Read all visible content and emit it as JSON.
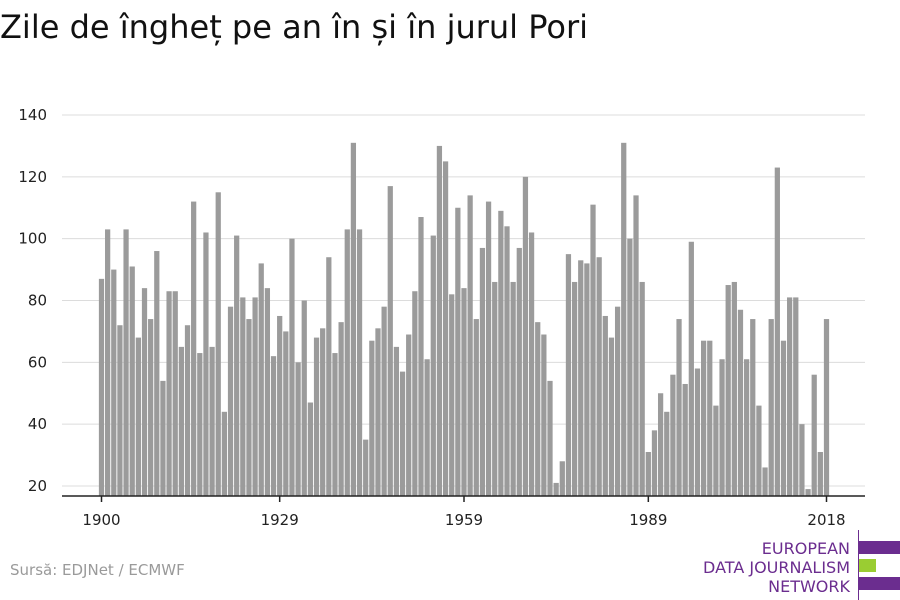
{
  "title": "Zile de îngheț pe an în și în jurul Pori",
  "source": "Sursă: EDJNet / ECMWF",
  "logo": {
    "lines": [
      "EUROPEAN",
      "DATA JOURNALISM",
      "NETWORK"
    ],
    "colors": {
      "text": "#6b2d8f",
      "bar": "#6b2d8f",
      "accent": "#9acd32"
    }
  },
  "chart_data": {
    "type": "bar",
    "title": "Zile de îngheț pe an în și în jurul Pori",
    "xlabel": "",
    "ylabel": "",
    "x_start": 1900,
    "x_end": 2018,
    "xticks": [
      1900,
      1929,
      1959,
      1989,
      2018
    ],
    "yticks": [
      20,
      40,
      60,
      80,
      100,
      120,
      140
    ],
    "ylim": [
      16,
      145
    ],
    "grid": true,
    "bar_color": "#9b9b9b",
    "values": [
      87,
      103,
      90,
      72,
      103,
      91,
      68,
      84,
      74,
      96,
      54,
      83,
      83,
      65,
      72,
      112,
      63,
      102,
      65,
      115,
      44,
      78,
      101,
      81,
      74,
      81,
      92,
      84,
      62,
      75,
      70,
      100,
      60,
      80,
      47,
      68,
      71,
      94,
      63,
      73,
      103,
      131,
      103,
      35,
      67,
      71,
      78,
      117,
      65,
      57,
      69,
      83,
      107,
      61,
      101,
      130,
      125,
      82,
      110,
      84,
      114,
      74,
      97,
      112,
      86,
      109,
      104,
      86,
      97,
      120,
      102,
      73,
      69,
      54,
      21,
      28,
      95,
      86,
      93,
      92,
      111,
      94,
      75,
      68,
      78,
      131,
      100,
      114,
      86,
      31,
      38,
      50,
      44,
      56,
      74,
      53,
      99,
      58,
      67,
      67,
      46,
      61,
      85,
      86,
      77,
      61,
      74,
      46,
      26,
      74,
      123,
      67,
      81,
      81,
      40,
      19,
      56,
      31,
      74
    ]
  }
}
